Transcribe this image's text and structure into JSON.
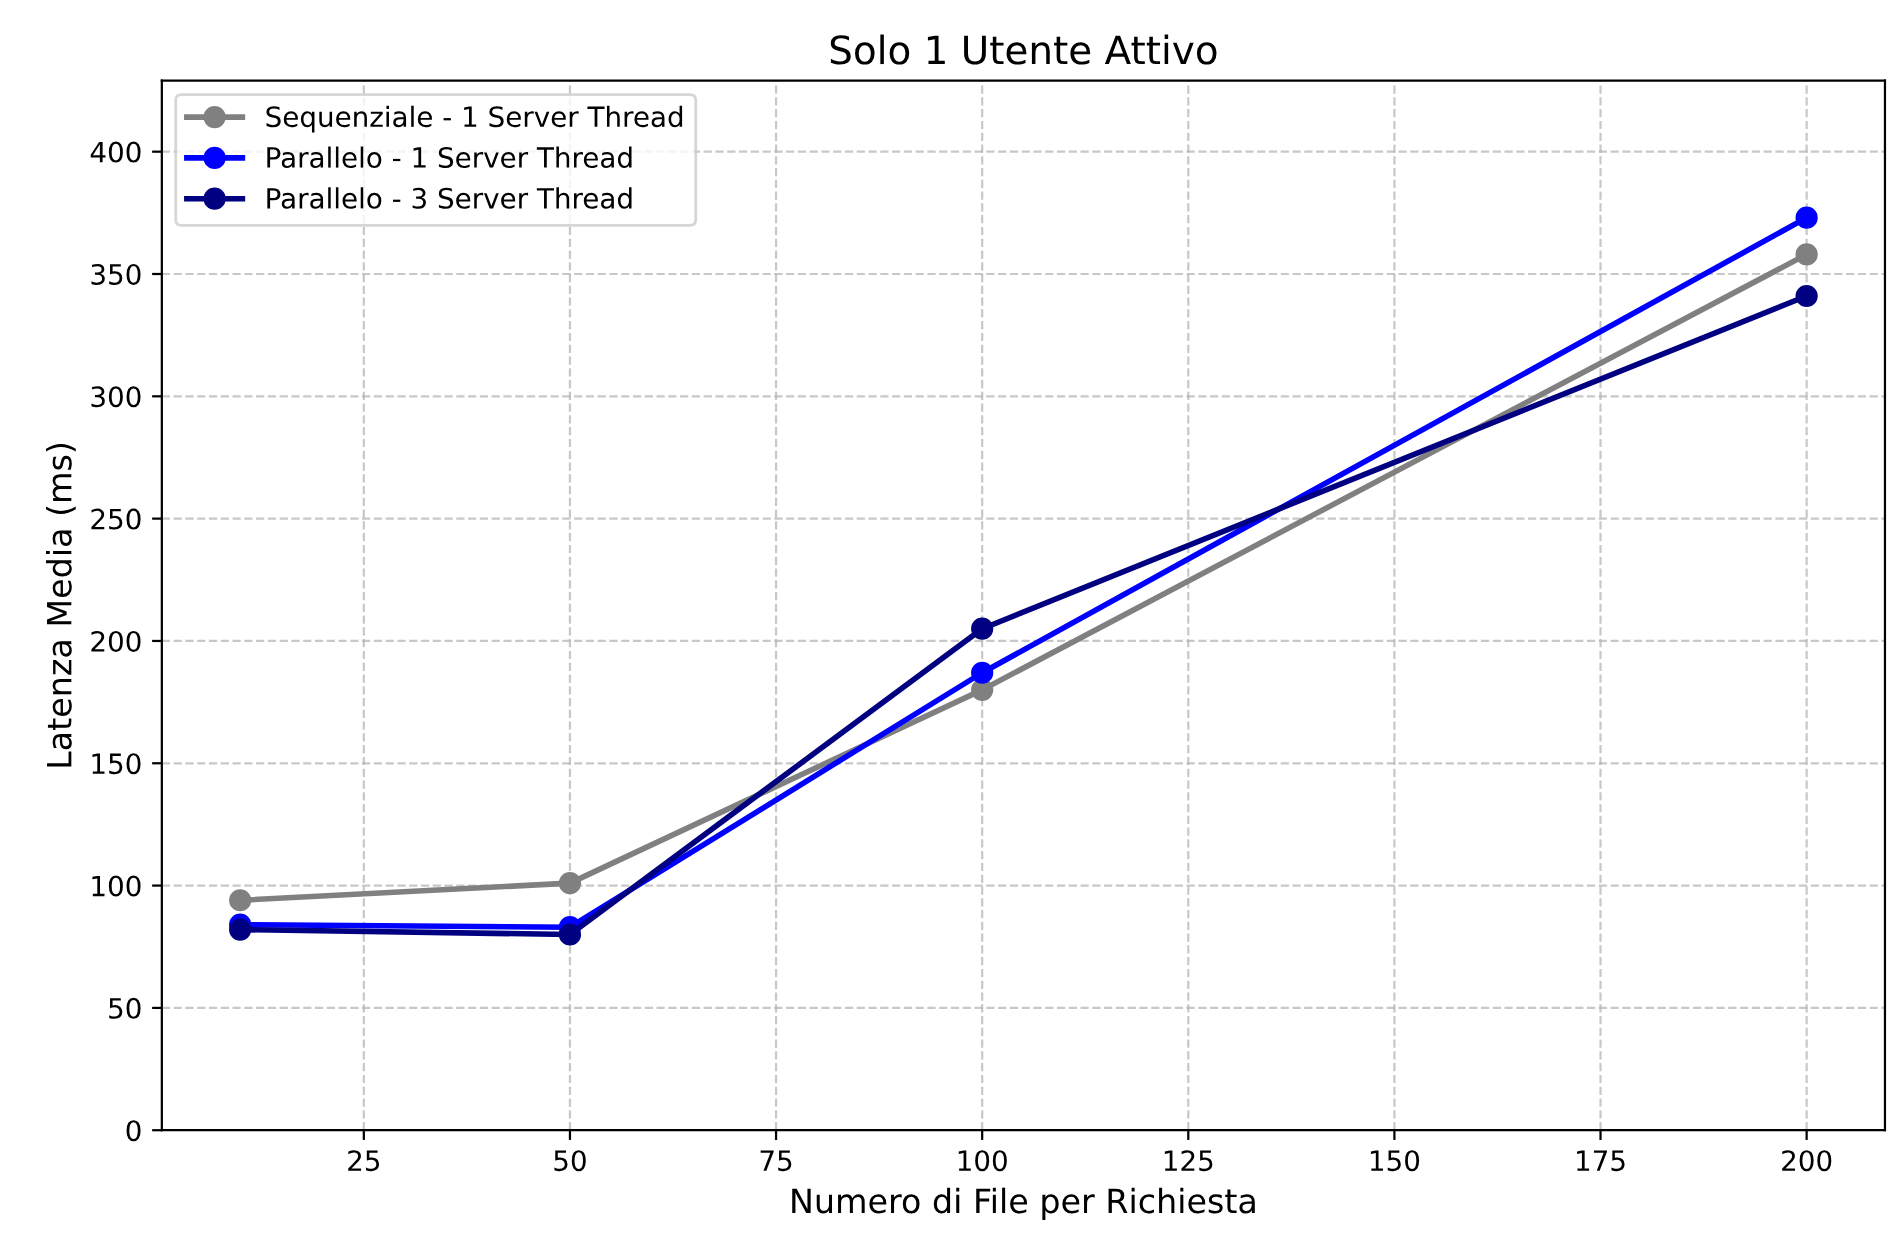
{
  "chart_data": {
    "type": "line",
    "title": "Solo 1 Utente Attivo",
    "xlabel": "Numero di File per Richiesta",
    "ylabel": "Latenza Media (ms)",
    "x": [
      10,
      50,
      100,
      200
    ],
    "series": [
      {
        "name": "Sequenziale - 1 Server Thread",
        "color": "#808080",
        "values": [
          94,
          101,
          180,
          358
        ]
      },
      {
        "name": "Parallelo - 1 Server Thread",
        "color": "#0000ff",
        "values": [
          84,
          83,
          187,
          373
        ]
      },
      {
        "name": "Parallelo - 3 Server Thread",
        "color": "#000080",
        "values": [
          82,
          80,
          205,
          341
        ]
      }
    ],
    "xlim": [
      0.5,
      209.5
    ],
    "xticks": [
      25,
      50,
      75,
      100,
      125,
      150,
      175,
      200
    ],
    "ylim": [
      0,
      429
    ],
    "yticks": [
      0,
      50,
      100,
      150,
      200,
      250,
      300,
      350,
      400
    ],
    "grid": true,
    "legend": "top left",
    "marker": "circle",
    "line_style": "solid"
  }
}
